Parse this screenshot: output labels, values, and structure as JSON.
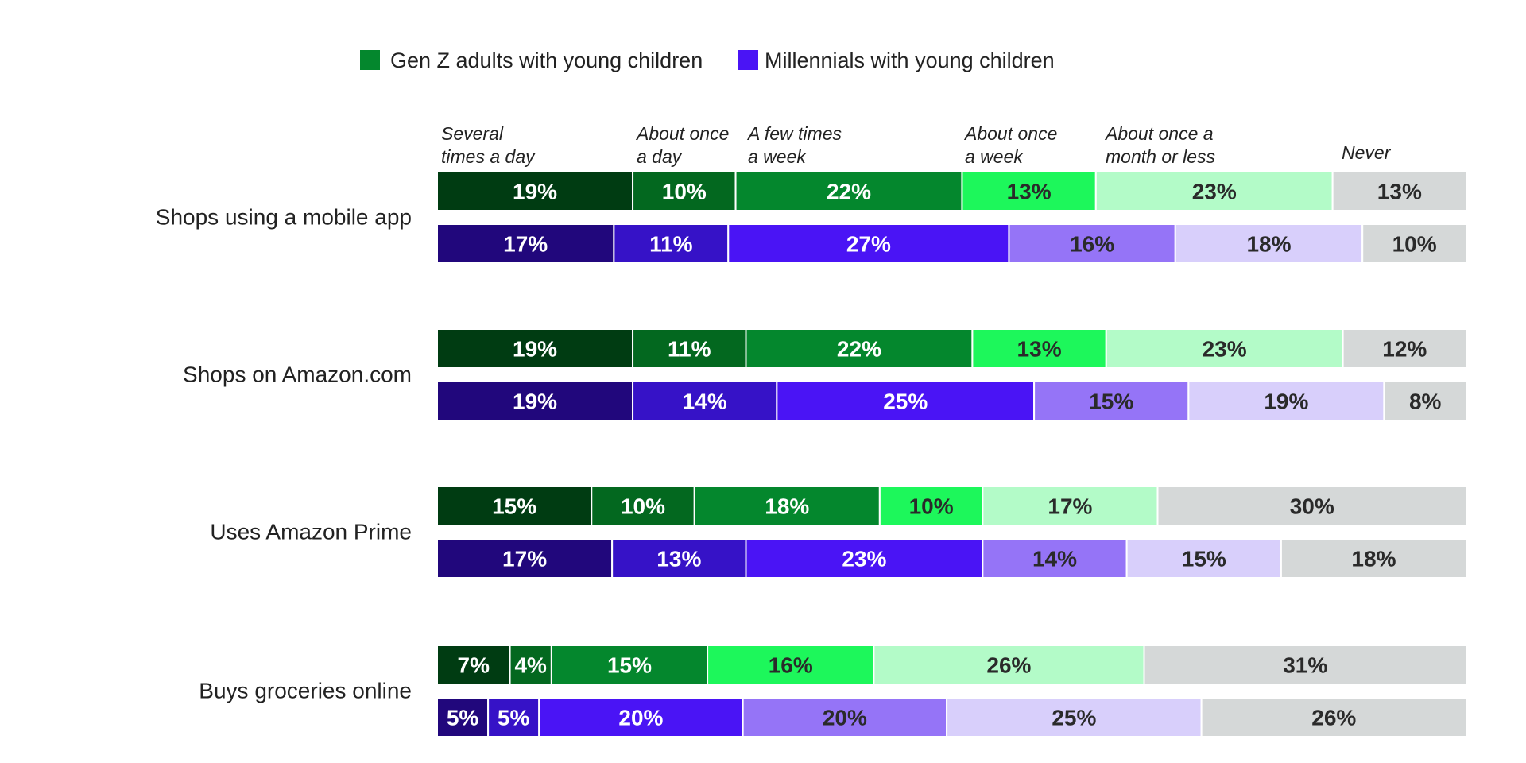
{
  "chart_data": {
    "type": "bar",
    "orientation": "horizontal",
    "stacked": true,
    "legend": [
      {
        "label": "Gen Z adults with young children",
        "color": "#04872d"
      },
      {
        "label": "Millennials with young children",
        "color": "#4a14f5"
      }
    ],
    "frequency_categories": [
      {
        "label_lines": [
          "Several",
          "times a day"
        ]
      },
      {
        "label_lines": [
          "About once",
          "a day"
        ]
      },
      {
        "label_lines": [
          "A few times",
          "a week"
        ]
      },
      {
        "label_lines": [
          "About once",
          "a week"
        ]
      },
      {
        "label_lines": [
          "About once a",
          "month or less"
        ]
      },
      {
        "label_lines": [
          "Never"
        ]
      }
    ],
    "rows": [
      {
        "label": "Shops using a mobile app",
        "series": [
          {
            "values": [
              19,
              10,
              22,
              13,
              23,
              13
            ]
          },
          {
            "values": [
              17,
              11,
              27,
              16,
              18,
              10
            ]
          }
        ]
      },
      {
        "label": "Shops on Amazon.com",
        "series": [
          {
            "values": [
              19,
              11,
              22,
              13,
              23,
              12
            ]
          },
          {
            "values": [
              19,
              14,
              25,
              15,
              19,
              8
            ]
          }
        ]
      },
      {
        "label": "Uses Amazon Prime",
        "series": [
          {
            "values": [
              15,
              10,
              18,
              10,
              17,
              30
            ]
          },
          {
            "values": [
              17,
              13,
              23,
              14,
              15,
              18
            ]
          }
        ]
      },
      {
        "label": "Buys groceries online",
        "series": [
          {
            "values": [
              7,
              4,
              15,
              16,
              26,
              31
            ]
          },
          {
            "values": [
              5,
              5,
              20,
              20,
              25,
              26
            ]
          }
        ]
      }
    ],
    "value_suffix": "%",
    "colors": {
      "gen_z": [
        "#003c12",
        "#03681f",
        "#04872d",
        "#1df75b",
        "#b3fbc8",
        "#d5d8d8"
      ],
      "millennials": [
        "#21077c",
        "#3612c7",
        "#4a14f5",
        "#9574f7",
        "#d8cffb",
        "#d5d8d8"
      ],
      "label_light": "#ffffff",
      "label_dark": "#2a2a2a"
    }
  }
}
